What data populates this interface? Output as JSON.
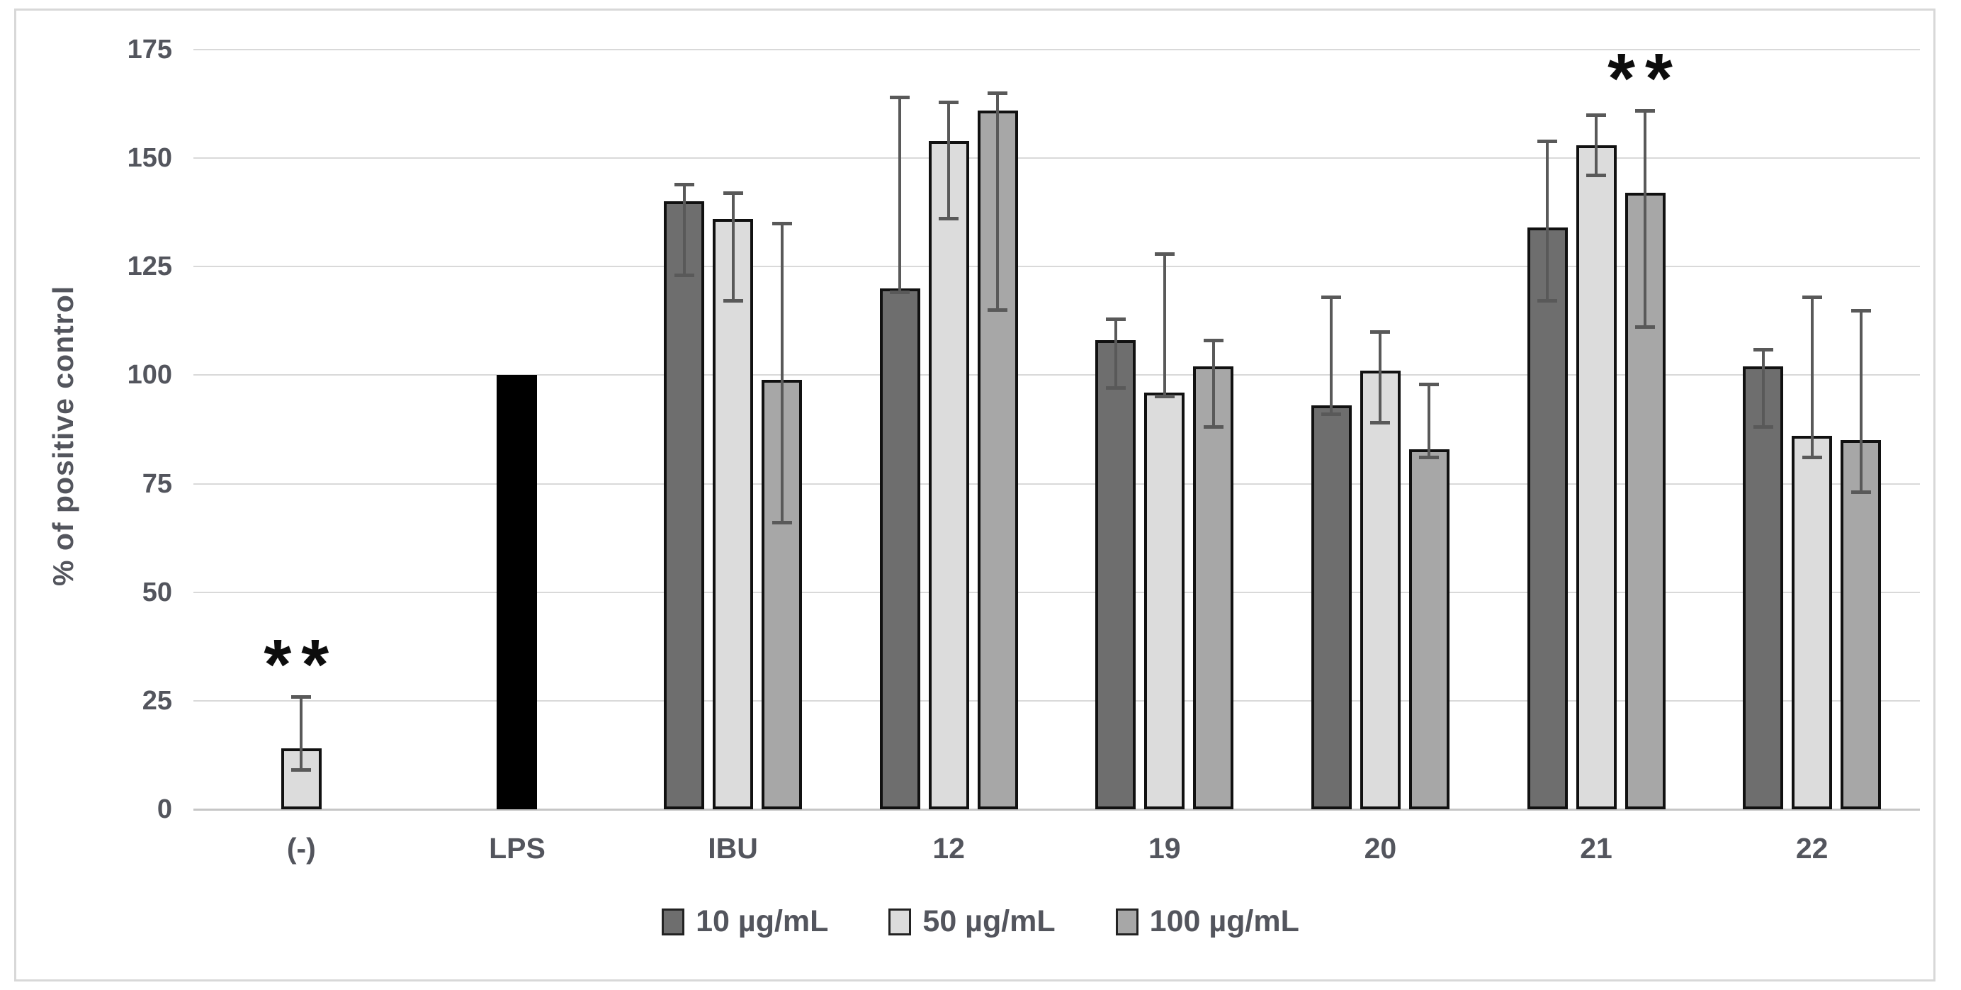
{
  "chart_data": {
    "type": "bar",
    "title": "",
    "ylabel": "% of positive control",
    "ylim": [
      0,
      175
    ],
    "ytick_step": 25,
    "yticks": [
      "0",
      "25",
      "50",
      "75",
      "100",
      "125",
      "150",
      "175"
    ],
    "grid": true,
    "legend_position": "bottom",
    "categories": [
      "(-)",
      "LPS",
      "IBU",
      "12",
      "19",
      "20",
      "21",
      "22"
    ],
    "series_legend": [
      {
        "name": "10 µg/mL",
        "color": "#6E6E6E"
      },
      {
        "name": "50 µg/mL",
        "color": "#DCDCDC"
      },
      {
        "name": "100 µg/mL",
        "color": "#A7A7A7"
      }
    ],
    "series": [
      {
        "name": "10 µg/mL",
        "values": [
          null,
          null,
          140,
          120,
          108,
          93,
          134,
          102
        ]
      },
      {
        "name": "50 µg/mL",
        "values": [
          14,
          null,
          136,
          154,
          96,
          101,
          153,
          86
        ]
      },
      {
        "name": "100 µg/mL",
        "values": [
          null,
          null,
          99,
          161,
          102,
          83,
          142,
          85
        ]
      }
    ],
    "control_bar": {
      "category": "LPS",
      "value": 100,
      "color": "#000000"
    },
    "groups": [
      {
        "label": "(-)",
        "annotation": "**",
        "annotation_bar": 0,
        "bars": [
          {
            "series": "50 µg/mL",
            "color": "#DCDCDC",
            "value": 14,
            "whisker_low": 9,
            "whisker_high": 26
          }
        ]
      },
      {
        "label": "LPS",
        "bars": [
          {
            "series": "LPS control",
            "color": "#000000",
            "value": 100
          }
        ]
      },
      {
        "label": "IBU",
        "bars": [
          {
            "series": "10 µg/mL",
            "color": "#6E6E6E",
            "value": 140,
            "whisker_low": 123,
            "whisker_high": 144
          },
          {
            "series": "50 µg/mL",
            "color": "#DCDCDC",
            "value": 136,
            "whisker_low": 117,
            "whisker_high": 142
          },
          {
            "series": "100 µg/mL",
            "color": "#A7A7A7",
            "value": 99,
            "whisker_low": 66,
            "whisker_high": 135
          }
        ]
      },
      {
        "label": "12",
        "bars": [
          {
            "series": "10 µg/mL",
            "color": "#6E6E6E",
            "value": 120,
            "whisker_low": 119,
            "whisker_high": 164
          },
          {
            "series": "50 µg/mL",
            "color": "#DCDCDC",
            "value": 154,
            "whisker_low": 136,
            "whisker_high": 163
          },
          {
            "series": "100 µg/mL",
            "color": "#A7A7A7",
            "value": 161,
            "whisker_low": 115,
            "whisker_high": 165
          }
        ]
      },
      {
        "label": "19",
        "bars": [
          {
            "series": "10 µg/mL",
            "color": "#6E6E6E",
            "value": 108,
            "whisker_low": 97,
            "whisker_high": 113
          },
          {
            "series": "50 µg/mL",
            "color": "#DCDCDC",
            "value": 96,
            "whisker_low": 95,
            "whisker_high": 128
          },
          {
            "series": "100 µg/mL",
            "color": "#A7A7A7",
            "value": 102,
            "whisker_low": 88,
            "whisker_high": 108
          }
        ]
      },
      {
        "label": "20",
        "bars": [
          {
            "series": "10 µg/mL",
            "color": "#6E6E6E",
            "value": 93,
            "whisker_low": 91,
            "whisker_high": 118
          },
          {
            "series": "50 µg/mL",
            "color": "#DCDCDC",
            "value": 101,
            "whisker_low": 89,
            "whisker_high": 110
          },
          {
            "series": "100 µg/mL",
            "color": "#A7A7A7",
            "value": 83,
            "whisker_low": 81,
            "whisker_high": 98
          }
        ]
      },
      {
        "label": "21",
        "annotation": "**",
        "annotation_bar": 2,
        "bars": [
          {
            "series": "10 µg/mL",
            "color": "#6E6E6E",
            "value": 134,
            "whisker_low": 117,
            "whisker_high": 154
          },
          {
            "series": "50 µg/mL",
            "color": "#DCDCDC",
            "value": 153,
            "whisker_low": 146,
            "whisker_high": 160
          },
          {
            "series": "100 µg/mL",
            "color": "#A7A7A7",
            "value": 142,
            "whisker_low": 111,
            "whisker_high": 161
          }
        ]
      },
      {
        "label": "22",
        "bars": [
          {
            "series": "10 µg/mL",
            "color": "#6E6E6E",
            "value": 102,
            "whisker_low": 88,
            "whisker_high": 106
          },
          {
            "series": "50 µg/mL",
            "color": "#DCDCDC",
            "value": 86,
            "whisker_low": 81,
            "whisker_high": 118
          },
          {
            "series": "100 µg/mL",
            "color": "#A7A7A7",
            "value": 85,
            "whisker_low": 73,
            "whisker_high": 115
          }
        ]
      }
    ],
    "colors": {
      "grid": "#D9D9D9",
      "axis_text": "#53555D",
      "error_bar": "#595959",
      "bar_border": "#111111",
      "chart_border": "#D8D8D8",
      "annotation": "#0D0D0D"
    }
  }
}
